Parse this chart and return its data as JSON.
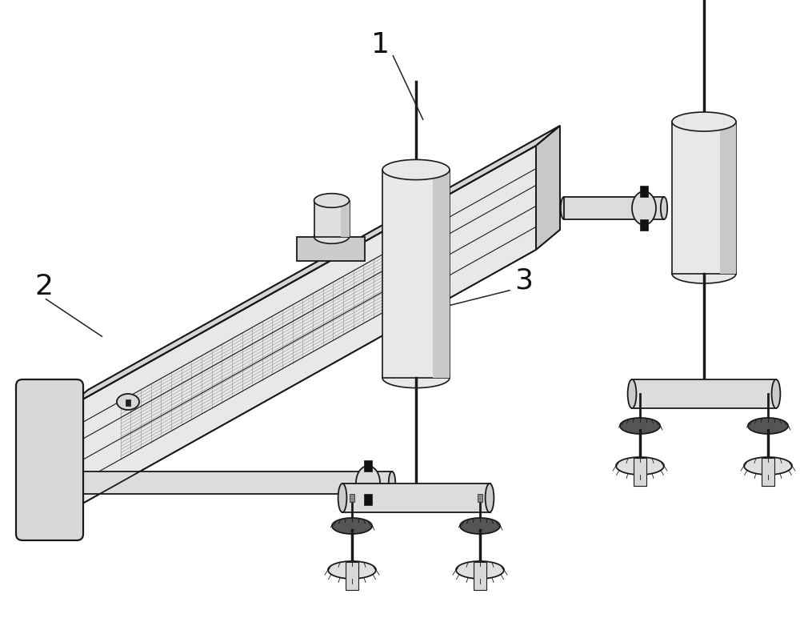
{
  "bg_color": "#ffffff",
  "line_color": "#1a1a1a",
  "fill_beam_top": "#d0d0d0",
  "fill_beam_front": "#e8e8e8",
  "fill_beam_side": "#b8b8b8",
  "fill_cap": "#d8d8d8",
  "fill_cylinder": "#e5e5e5",
  "fill_arm": "#dcdcdc",
  "fill_dark": "#444444",
  "label_1": "1",
  "label_2": "2",
  "label_3": "3",
  "figsize": [
    10.0,
    8.03
  ],
  "dpi": 100
}
